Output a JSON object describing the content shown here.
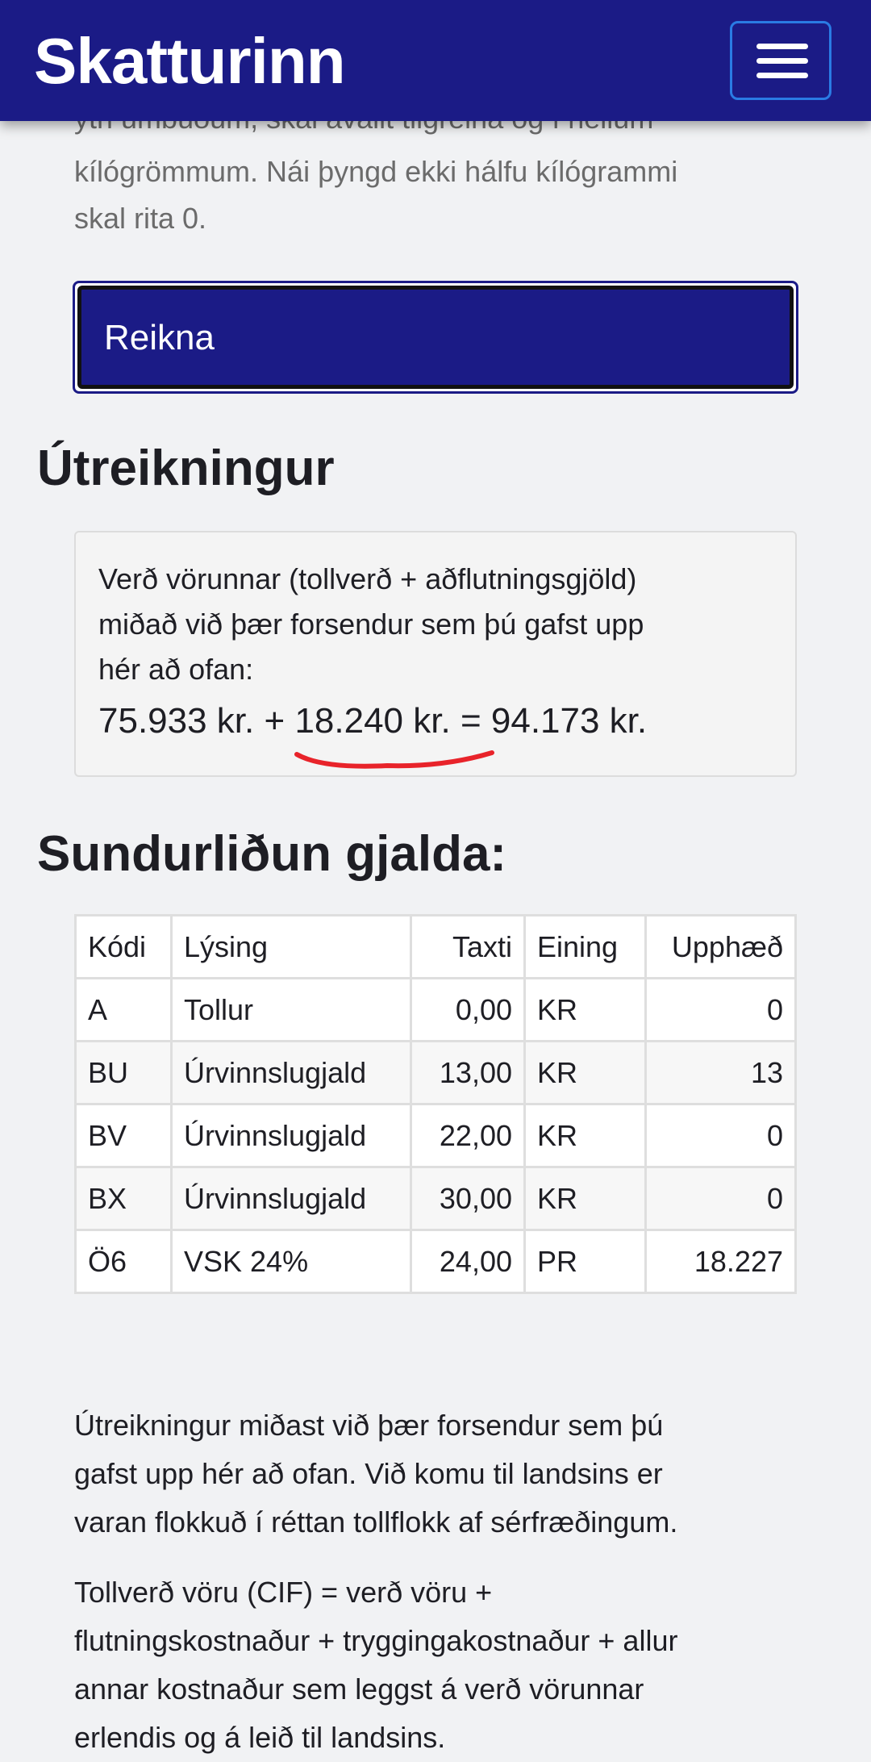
{
  "header": {
    "logo": "Skatturinn",
    "menu_icon": "hamburger-icon",
    "color": "#1b1b86"
  },
  "intro": {
    "line0": "ytri umbúðum, skal ávallt tilgreina og í heilum",
    "line1": "kílógrömmum. Nái þyngd ekki hálfu kílógrammi",
    "line2": "skal rita 0."
  },
  "calculate_button": "Reikna",
  "result": {
    "heading": "Útreikningur",
    "line1": "Verð vörunnar (tollverð + aðflutningsgjöld)",
    "line2": "miðað við þær forsendur sem þú gafst upp",
    "line3": "hér að ofan:",
    "value1": "75.933 kr.",
    "plus": "+",
    "value2": "18.240 kr.",
    "equals": "=",
    "total": "94.173 kr."
  },
  "breakdown": {
    "heading": "Sundurliðun gjalda:",
    "columns": [
      "Kódi",
      "Lýsing",
      "Taxti",
      "Eining",
      "Upphæð"
    ],
    "rows": [
      [
        "A",
        "Tollur",
        "0,00",
        "KR",
        "0"
      ],
      [
        "BU",
        "Úrvinnslugjald",
        "13,00",
        "KR",
        "13"
      ],
      [
        "BV",
        "Úrvinnslugjald",
        "22,00",
        "KR",
        "0"
      ],
      [
        "BX",
        "Úrvinnslugjald",
        "30,00",
        "KR",
        "0"
      ],
      [
        "Ö6",
        "VSK 24%",
        "24,00",
        "PR",
        "18.227"
      ]
    ]
  },
  "notes": {
    "p1": [
      "Útreikningur miðast við þær forsendur sem þú",
      "gafst upp hér að ofan. Við komu til landsins er",
      "varan flokkuð í réttan tollflokk af sérfræðingum."
    ],
    "p2": [
      "Tollverð vöru (CIF) = verð vöru +",
      "flutningskostnaður + tryggingakostnaður + allur",
      "annar kostnaður sem leggst á verð vörunnar",
      "erlendis og á leið til landsins."
    ]
  },
  "annotation_color": "#e8232a"
}
